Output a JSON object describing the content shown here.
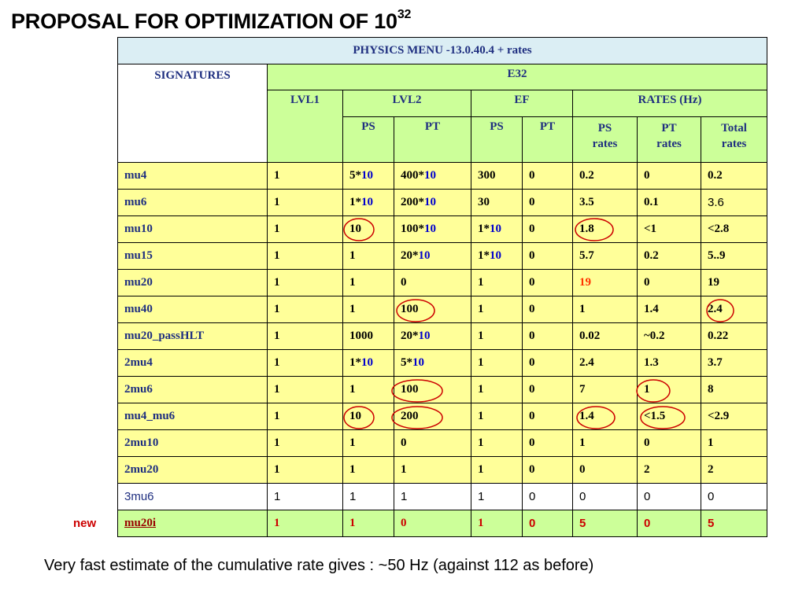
{
  "title": {
    "text": "PROPOSAL FOR OPTIMIZATION OF 10",
    "exponent": "32"
  },
  "table": {
    "menu_title": "PHYSICS MENU -13.0.40.4 + rates",
    "signatures_header": "SIGNATURES",
    "group_header": "E32",
    "col_lvl1": "LVL1",
    "col_lvl2": "LVL2",
    "col_ef": "EF",
    "col_rates": "RATES (Hz)",
    "sub": {
      "lvl2_ps": "PS",
      "lvl2_pt": "PT",
      "ef_ps": "PS",
      "ef_pt": "PT",
      "ps_rates_1": "PS",
      "ps_rates_2": "rates",
      "pt_rates_1": "PT",
      "pt_rates_2": "rates",
      "total_rates_1": "Total",
      "total_rates_2": "rates"
    },
    "rows": [
      {
        "sig": "mu4",
        "lvl1": "1",
        "lvl2_ps_a": "5*",
        "lvl2_ps_b": "10",
        "lvl2_pt_a": "400*",
        "lvl2_pt_b": "10",
        "ef_ps_a": "300",
        "ef_ps_b": "",
        "ef_pt": "0",
        "ps_rate": "0.2",
        "pt_rate": "0",
        "total": "0.2"
      },
      {
        "sig": "mu6",
        "lvl1": "1",
        "lvl2_ps_a": "1*",
        "lvl2_ps_b": "10",
        "lvl2_pt_a": "200*",
        "lvl2_pt_b": "10",
        "ef_ps_a": "30",
        "ef_ps_b": "",
        "ef_pt": "0",
        "ps_rate": "3.5",
        "pt_rate": "0.1",
        "total": "3.6"
      },
      {
        "sig": "mu10",
        "lvl1": "1",
        "lvl2_ps_a": "10",
        "lvl2_ps_b": "",
        "lvl2_pt_a": "100*",
        "lvl2_pt_b": "10",
        "ef_ps_a": "1*",
        "ef_ps_b": "10",
        "ef_pt": "0",
        "ps_rate": "1.8",
        "pt_rate": "<1",
        "total": "<2.8"
      },
      {
        "sig": "mu15",
        "lvl1": "1",
        "lvl2_ps_a": "1",
        "lvl2_ps_b": "",
        "lvl2_pt_a": "20*",
        "lvl2_pt_b": "10",
        "ef_ps_a": "1*",
        "ef_ps_b": "10",
        "ef_pt": "0",
        "ps_rate": "5.7",
        "pt_rate": "0.2",
        "total": "5..9"
      },
      {
        "sig": "mu20",
        "lvl1": "1",
        "lvl2_ps_a": "1",
        "lvl2_ps_b": "",
        "lvl2_pt_a": "0",
        "lvl2_pt_b": "",
        "ef_ps_a": "1",
        "ef_ps_b": "",
        "ef_pt": "0",
        "ps_rate": "19",
        "pt_rate": "0",
        "total": "19"
      },
      {
        "sig": "mu40",
        "lvl1": "1",
        "lvl2_ps_a": "1",
        "lvl2_ps_b": "",
        "lvl2_pt_a": "100",
        "lvl2_pt_b": "",
        "ef_ps_a": "1",
        "ef_ps_b": "",
        "ef_pt": "0",
        "ps_rate": "1",
        "pt_rate": "1.4",
        "total": "2.4"
      },
      {
        "sig": "mu20_passHLT",
        "lvl1": "1",
        "lvl2_ps_a": "1000",
        "lvl2_ps_b": "",
        "lvl2_pt_a": "20*",
        "lvl2_pt_b": "10",
        "ef_ps_a": "1",
        "ef_ps_b": "",
        "ef_pt": "0",
        "ps_rate": "0.02",
        "pt_rate": "~0.2",
        "total": "0.22"
      },
      {
        "sig": "2mu4",
        "lvl1": "1",
        "lvl2_ps_a": "1*",
        "lvl2_ps_b": "10",
        "lvl2_pt_a": "5*",
        "lvl2_pt_b": "10",
        "ef_ps_a": "1",
        "ef_ps_b": "",
        "ef_pt": "0",
        "ps_rate": "2.4",
        "pt_rate": "1.3",
        "total": "3.7"
      },
      {
        "sig": "2mu6",
        "lvl1": "1",
        "lvl2_ps_a": "1",
        "lvl2_ps_b": "",
        "lvl2_pt_a": "100",
        "lvl2_pt_b": "",
        "ef_ps_a": "1",
        "ef_ps_b": "",
        "ef_pt": "0",
        "ps_rate": "7",
        "pt_rate": "1",
        "total": "8"
      },
      {
        "sig": "mu4_mu6",
        "lvl1": "1",
        "lvl2_ps_a": "10",
        "lvl2_ps_b": "",
        "lvl2_pt_a": "200",
        "lvl2_pt_b": "",
        "ef_ps_a": "1",
        "ef_ps_b": "",
        "ef_pt": "0",
        "ps_rate": "1.4",
        "pt_rate": "<1.5",
        "total": "<2.9"
      },
      {
        "sig": "2mu10",
        "lvl1": "1",
        "lvl2_ps_a": "1",
        "lvl2_ps_b": "",
        "lvl2_pt_a": "0",
        "lvl2_pt_b": "",
        "ef_ps_a": "1",
        "ef_ps_b": "",
        "ef_pt": "0",
        "ps_rate": "1",
        "pt_rate": "0",
        "total": "1"
      },
      {
        "sig": "2mu20",
        "lvl1": "1",
        "lvl2_ps_a": "1",
        "lvl2_ps_b": "",
        "lvl2_pt_a": "1",
        "lvl2_pt_b": "",
        "ef_ps_a": "1",
        "ef_ps_b": "",
        "ef_pt": "0",
        "ps_rate": "0",
        "pt_rate": "2",
        "total": "2"
      },
      {
        "sig": "3mu6",
        "lvl1": "1",
        "lvl2_ps_a": "1",
        "lvl2_ps_b": "",
        "lvl2_pt_a": "1",
        "lvl2_pt_b": "",
        "ef_ps_a": "1",
        "ef_ps_b": "",
        "ef_pt": "0",
        "ps_rate": "0",
        "pt_rate": "0",
        "total": "0"
      },
      {
        "sig": "mu20i",
        "lvl1": "1",
        "lvl2_ps_a": "1",
        "lvl2_ps_b": "",
        "lvl2_pt_a": "0",
        "lvl2_pt_b": "",
        "ef_ps_a": "1",
        "ef_ps_b": "",
        "ef_pt": "0",
        "ps_rate": "5",
        "pt_rate": "0",
        "total": "5"
      }
    ]
  },
  "new_label": "new",
  "footer": "Very fast estimate of the cumulative rate gives : ~50 Hz (against 112 as before)",
  "colors": {
    "header_text": "#1f2f80",
    "row_yellow": "#ffff99",
    "header_green": "#ccff99",
    "menu_blue": "#dbeef4",
    "highlight_blue": "#0000cc",
    "highlight_red": "#ff3300",
    "circle": "#cc0000"
  }
}
